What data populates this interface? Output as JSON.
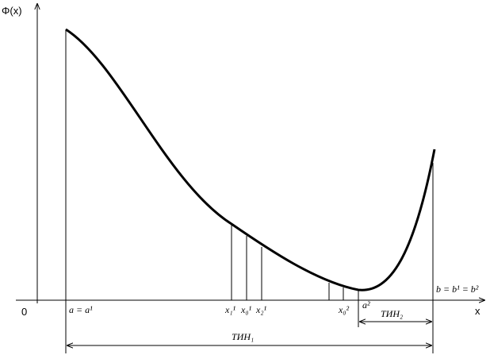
{
  "axis": {
    "y_label": "Φ(x)",
    "origin": "0",
    "x_label": "x"
  },
  "points": {
    "a": "a = a¹",
    "x11": "x₁¹",
    "x01": "x₀¹",
    "x21": "x₂¹",
    "x02": "x₀²",
    "a2": "a²",
    "b": "b = b¹ = b²"
  },
  "intervals": {
    "tin2": "ТИН₂",
    "tin1": "ТИН₁"
  }
}
